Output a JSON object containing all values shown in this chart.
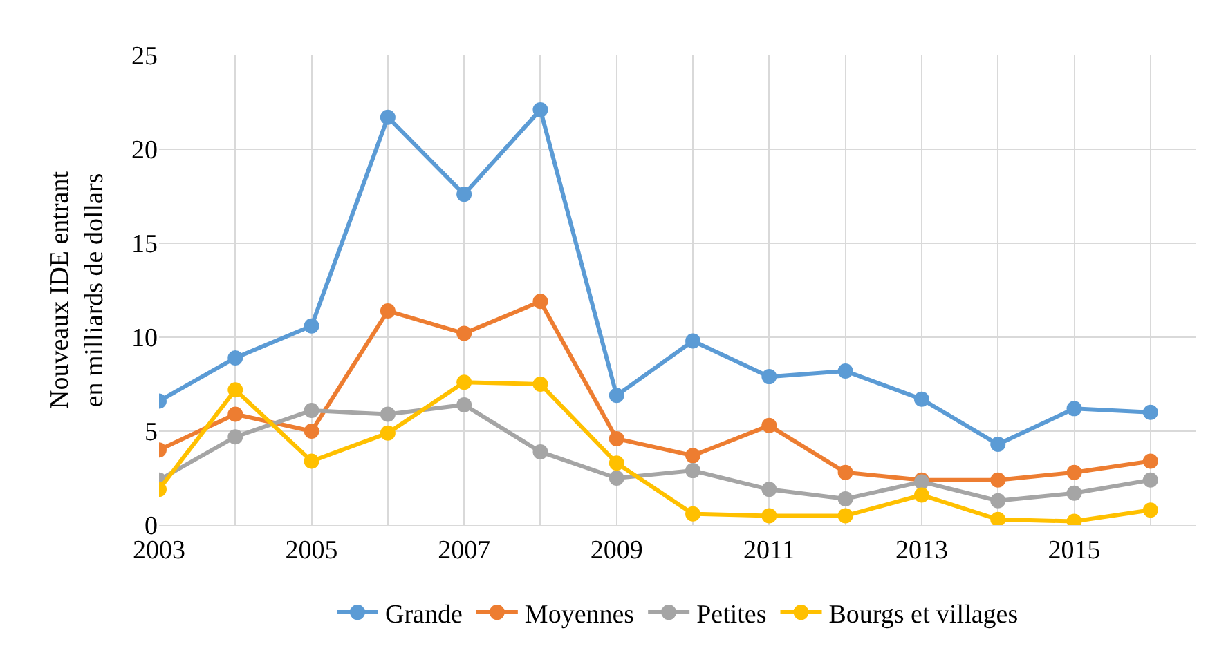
{
  "chart_data": {
    "type": "line",
    "ylabel": "Nouveaux IDE entrant\nen milliards de dollars",
    "x": [
      2003,
      2004,
      2005,
      2006,
      2007,
      2008,
      2009,
      2010,
      2011,
      2012,
      2013,
      2014,
      2015,
      2016
    ],
    "xlim": [
      2003,
      2016.6
    ],
    "xticks": [
      2003,
      {
        "value": 2004,
        "label": null
      },
      2005,
      {
        "value": 2006,
        "label": null
      },
      2007,
      {
        "value": 2008,
        "label": null
      },
      2009,
      {
        "value": 2010,
        "label": null
      },
      2011,
      {
        "value": 2012,
        "label": null
      },
      2013,
      {
        "value": 2014,
        "label": null
      },
      2015,
      {
        "value": 2016,
        "label": null
      }
    ],
    "ylim": [
      0,
      25
    ],
    "yticks": [
      0,
      5,
      10,
      15,
      20,
      25
    ],
    "grid": true,
    "legend": "bottom",
    "marker": "circle",
    "line_style": "solid",
    "series": [
      {
        "name": "Grande",
        "color": "#5b9bd5",
        "values": [
          6.6,
          8.9,
          10.6,
          21.7,
          17.6,
          22.1,
          6.9,
          9.8,
          7.9,
          8.2,
          6.7,
          4.3,
          6.2,
          6.0
        ]
      },
      {
        "name": "Moyennes",
        "color": "#ed7d31",
        "values": [
          4.0,
          5.9,
          5.0,
          11.4,
          10.2,
          11.9,
          4.6,
          3.7,
          5.3,
          2.8,
          2.4,
          2.4,
          2.8,
          3.4
        ]
      },
      {
        "name": "Petites",
        "color": "#a5a5a5",
        "values": [
          2.4,
          4.7,
          6.1,
          5.9,
          6.4,
          3.9,
          2.5,
          2.9,
          1.9,
          1.4,
          2.3,
          1.3,
          1.7,
          2.4
        ]
      },
      {
        "name": "Bourgs et villages",
        "color": "#ffc000",
        "values": [
          1.9,
          7.2,
          3.4,
          4.9,
          7.6,
          7.5,
          3.3,
          0.6,
          0.5,
          0.5,
          1.6,
          0.3,
          0.2,
          0.8
        ]
      }
    ]
  }
}
